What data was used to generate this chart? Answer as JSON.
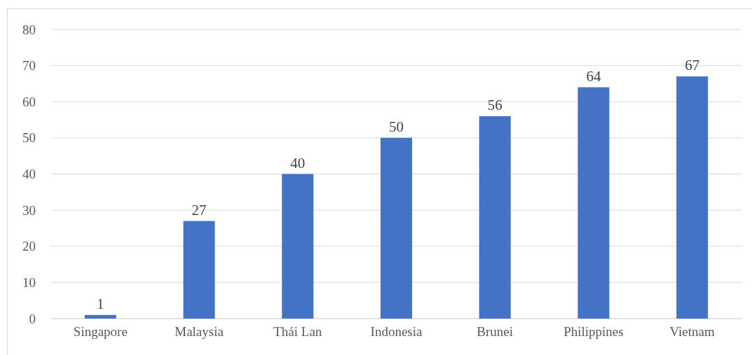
{
  "chart_data": {
    "type": "bar",
    "categories": [
      "Singapore",
      "Malaysia",
      "Thái Lan",
      "Indonesia",
      "Brunei",
      "Philippines",
      "Vietnam"
    ],
    "values": [
      1,
      27,
      40,
      50,
      56,
      64,
      67
    ],
    "color": "#4472c4",
    "ylim": [
      0,
      80
    ],
    "yticks": [
      0,
      10,
      20,
      30,
      40,
      50,
      60,
      70,
      80
    ],
    "grid": "y",
    "data_labels": true
  }
}
